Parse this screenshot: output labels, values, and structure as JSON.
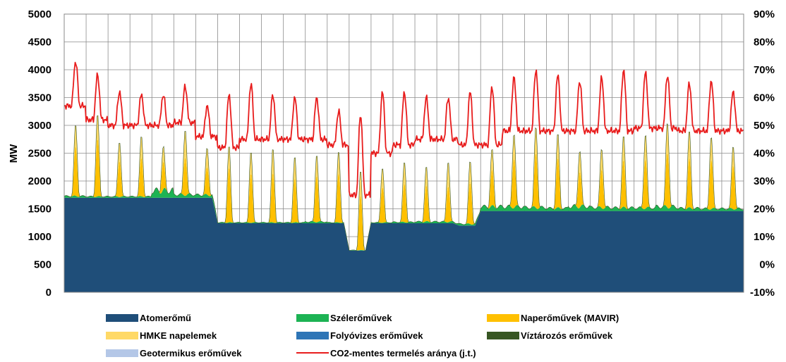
{
  "chart_data": {
    "type": "area",
    "ylabel": "MW",
    "y_left_ticks": [
      "0",
      "500",
      "1000",
      "1500",
      "2000",
      "2500",
      "3000",
      "3500",
      "4000",
      "4500",
      "5000"
    ],
    "y_right_ticks": [
      "-10%",
      "0%",
      "10%",
      "20%",
      "30%",
      "40%",
      "50%",
      "60%",
      "70%",
      "80%",
      "90%"
    ],
    "ylim_left": [
      0,
      5000
    ],
    "ylim_right": [
      -10,
      90
    ],
    "grid": true,
    "days": 31,
    "x_tick_labels": [],
    "legend_position": "bottom",
    "series": [
      {
        "name": "Atomerőmű",
        "color": "#1F4E79",
        "daily_values": [
          1700,
          1700,
          1700,
          1700,
          1700,
          1700,
          1700,
          1240,
          1240,
          1240,
          1240,
          1240,
          1240,
          750,
          1240,
          1240,
          1240,
          1240,
          1200,
          1460,
          1460,
          1460,
          1460,
          1460,
          1460,
          1460,
          1460,
          1460,
          1460,
          1460,
          1460
        ]
      },
      {
        "name": "Szélerőművek",
        "color": "#1DB354",
        "daily_values": [
          40,
          30,
          30,
          30,
          180,
          80,
          70,
          20,
          20,
          20,
          20,
          40,
          20,
          10,
          20,
          30,
          40,
          40,
          40,
          110,
          110,
          90,
          70,
          120,
          90,
          80,
          80,
          110,
          70,
          60,
          60
        ]
      },
      {
        "name": "Naperőművek (MAVIR)",
        "color": "#FFC000",
        "daily_peak_values": [
          900,
          1050,
          650,
          700,
          500,
          700,
          500,
          1000,
          900,
          900,
          800,
          850,
          900,
          1000,
          650,
          700,
          650,
          650,
          750,
          650,
          900,
          1000,
          900,
          650,
          700,
          850,
          900,
          1000,
          900,
          900,
          800
        ]
      },
      {
        "name": "HMKE napelemek",
        "color": "#FFD966",
        "daily_peak_values": [
          400,
          450,
          350,
          400,
          280,
          500,
          350,
          400,
          400,
          450,
          400,
          380,
          400,
          450,
          350,
          400,
          350,
          450,
          400,
          380,
          450,
          480,
          450,
          380,
          380,
          450,
          450,
          550,
          500,
          420,
          350
        ]
      },
      {
        "name": "Folyóvizes erőművek",
        "color": "#2E75B6",
        "daily_values": []
      },
      {
        "name": "Víztározós erőművek",
        "color": "#375623",
        "daily_values": []
      },
      {
        "name": "Geotermikus erőművek",
        "color": "#B4C7E7",
        "daily_values": []
      },
      {
        "name": "CO2-mentes termelés aránya (j.t.)",
        "color": "#E81C1C",
        "axis": "right",
        "daily_min_pct": [
          57,
          52,
          50,
          50,
          50,
          51,
          46,
          42,
          45,
          45,
          45,
          45,
          43,
          25,
          40,
          43,
          45,
          45,
          43,
          43,
          48,
          48,
          48,
          48,
          48,
          48,
          49,
          49,
          48,
          48,
          48
        ],
        "daily_max_pct": [
          73,
          68,
          62,
          61,
          61,
          64,
          57,
          61,
          65,
          61,
          60,
          60,
          55,
          54,
          62,
          62,
          60,
          60,
          62,
          64,
          67,
          70,
          68,
          66,
          67,
          70,
          69,
          68,
          65,
          66,
          62
        ]
      }
    ]
  }
}
